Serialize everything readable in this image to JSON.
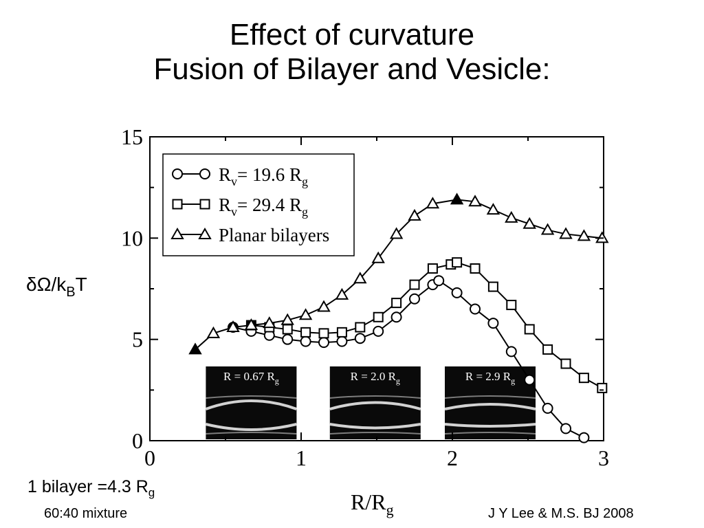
{
  "slide": {
    "title_line1": "Effect of curvature",
    "title_line2": "Fusion of Bilayer and Vesicle:",
    "note_bilayer_main": "1 bilayer =4.3 R",
    "note_bilayer_sub": "g",
    "note_mixture": "60:40 mixture",
    "credit": "J Y Lee & M.S. BJ 2008"
  },
  "chart_data": {
    "type": "line",
    "xlabel_main": "R/R",
    "xlabel_sub": "g",
    "ylabel_main": "δΩ/k",
    "ylabel_sub": "B",
    "ylabel_tail": "T",
    "xlim": [
      0,
      3
    ],
    "ylim": [
      0,
      15
    ],
    "x_ticks": [
      "0",
      "1",
      "2",
      "3"
    ],
    "y_ticks": [
      "0",
      "5",
      "10",
      "15"
    ],
    "legend_position": "top-left",
    "series": [
      {
        "name": "R_v = 19.6 R_g",
        "legend_main": "R",
        "legend_sub1": "v",
        "legend_mid": "= 19.6 R",
        "legend_sub2": "g",
        "marker": "circle",
        "filled_index": [
          0,
          13
        ],
        "x": [
          0.55,
          0.67,
          0.79,
          0.91,
          1.03,
          1.15,
          1.27,
          1.39,
          1.51,
          1.63,
          1.75,
          1.87,
          1.91,
          2.03,
          2.15,
          2.27,
          2.39,
          2.51,
          2.63,
          2.75,
          2.87
        ],
        "y": [
          5.6,
          5.4,
          5.2,
          5.0,
          4.9,
          4.85,
          4.9,
          5.05,
          5.4,
          6.1,
          7.0,
          7.7,
          7.9,
          7.3,
          6.5,
          5.8,
          4.4,
          3.0,
          1.6,
          0.6,
          0.15
        ]
      },
      {
        "name": "R_v = 29.4 R_g",
        "legend_main": "R",
        "legend_sub1": "v",
        "legend_mid": "= 29.4 R",
        "legend_sub2": "g",
        "marker": "square",
        "filled_index": [
          0,
          13
        ],
        "x": [
          0.67,
          0.79,
          0.91,
          1.03,
          1.15,
          1.27,
          1.39,
          1.51,
          1.63,
          1.75,
          1.87,
          1.99,
          2.03,
          2.15,
          2.27,
          2.39,
          2.51,
          2.63,
          2.75,
          2.87,
          2.99
        ],
        "y": [
          5.7,
          5.6,
          5.5,
          5.35,
          5.3,
          5.35,
          5.6,
          6.1,
          6.8,
          7.7,
          8.5,
          8.7,
          8.8,
          8.5,
          7.6,
          6.7,
          5.5,
          4.5,
          3.8,
          3.1,
          2.6
        ]
      },
      {
        "name": "Planar bilayers",
        "legend_main": "Planar bilayers",
        "marker": "triangle",
        "filled_index": [
          0,
          14
        ],
        "x": [
          0.3,
          0.42,
          0.55,
          0.67,
          0.79,
          0.91,
          1.03,
          1.15,
          1.27,
          1.39,
          1.51,
          1.63,
          1.75,
          1.87,
          2.03,
          2.15,
          2.27,
          2.39,
          2.51,
          2.63,
          2.75,
          2.87,
          2.99
        ],
        "y": [
          4.5,
          5.3,
          5.6,
          5.7,
          5.8,
          5.95,
          6.2,
          6.6,
          7.2,
          8.0,
          9.0,
          10.2,
          11.1,
          11.7,
          11.9,
          11.8,
          11.4,
          11.0,
          10.7,
          10.4,
          10.2,
          10.1,
          10.0
        ]
      }
    ],
    "insets": [
      {
        "label_main": "R = 0.67 R",
        "label_sub": "g",
        "x_center": 0.67
      },
      {
        "label_main": "R = 2.0 R",
        "label_sub": "g",
        "x_center": 1.49
      },
      {
        "label_main": "R = 2.9 R",
        "label_sub": "g",
        "x_center": 2.25
      }
    ]
  }
}
